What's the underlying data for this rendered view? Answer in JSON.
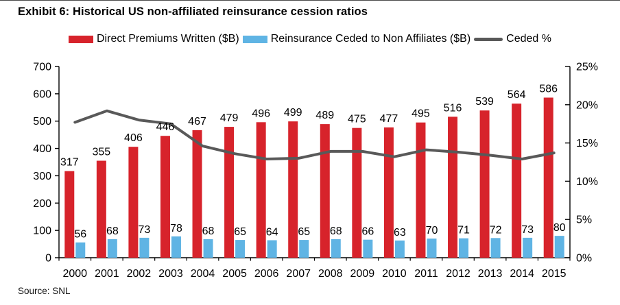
{
  "page": {
    "title": "Exhibit 6: Historical US non-affiliated reinsurance cession ratios",
    "source": "Source: SNL"
  },
  "legend": {
    "items": [
      {
        "label": "Direct Premiums Written ($B)",
        "color": "#d7232b",
        "marker": "bar"
      },
      {
        "label": "Reinsurance Ceded to Non Affiliates ($B)",
        "color": "#5fb4e4",
        "marker": "bar"
      },
      {
        "label": "Ceded %",
        "color": "#595959",
        "marker": "line"
      }
    ]
  },
  "chart_data": {
    "type": "bar+line",
    "title": "Historical US non-affiliated reinsurance cession ratios",
    "categories": [
      "2000",
      "2001",
      "2002",
      "2003",
      "2004",
      "2005",
      "2006",
      "2007",
      "2008",
      "2009",
      "2010",
      "2011",
      "2012",
      "2013",
      "2014",
      "2015"
    ],
    "series": [
      {
        "name": "Direct Premiums Written ($B)",
        "type": "bar",
        "axis": "left",
        "color": "#d7232b",
        "values": [
          317,
          355,
          406,
          446,
          467,
          479,
          496,
          499,
          489,
          475,
          477,
          495,
          516,
          539,
          564,
          586
        ]
      },
      {
        "name": "Reinsurance Ceded to Non Affiliates ($B)",
        "type": "bar",
        "axis": "left",
        "color": "#5fb4e4",
        "values": [
          56,
          68,
          73,
          78,
          68,
          65,
          64,
          65,
          68,
          66,
          63,
          70,
          71,
          72,
          73,
          80
        ]
      },
      {
        "name": "Ceded %",
        "type": "line",
        "axis": "right",
        "color": "#595959",
        "values": [
          17.7,
          19.2,
          18.0,
          17.5,
          14.6,
          13.6,
          12.9,
          13.0,
          13.9,
          13.9,
          13.2,
          14.1,
          13.8,
          13.4,
          12.9,
          13.7
        ]
      }
    ],
    "left_axis": {
      "min": 0,
      "max": 700,
      "step": 100,
      "suffix": ""
    },
    "right_axis": {
      "min": 0,
      "max": 25,
      "step": 5,
      "suffix": "%"
    },
    "bar_labels": true,
    "grid": false,
    "legend_position": "top",
    "axis_color": "#000000",
    "label_color": "#000000"
  }
}
